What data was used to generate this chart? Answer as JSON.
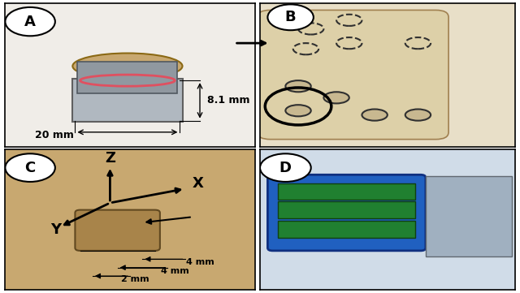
{
  "fig_width": 6.4,
  "fig_height": 3.61,
  "bg_color": "#ffffff",
  "border_color": "#000000",
  "panel_bg_A": "#d4c4a0",
  "panel_bg_B": "#dfd0a8",
  "panel_bg_C": "#c8a87a",
  "panel_bg_D": "#c8d8e8",
  "label_A": "A",
  "label_B": "B",
  "label_C": "C",
  "label_D": "D",
  "ann_A_h": "8.1 mm",
  "ann_A_w": "20 mm",
  "ann_C_z": "Z",
  "ann_C_x": "X",
  "ann_C_y": "Y",
  "ann_C_4mm_1": "4 mm",
  "ann_C_4mm_2": "4 mm",
  "ann_C_2mm": "2 mm",
  "font_label": 14,
  "font_ann": 9
}
